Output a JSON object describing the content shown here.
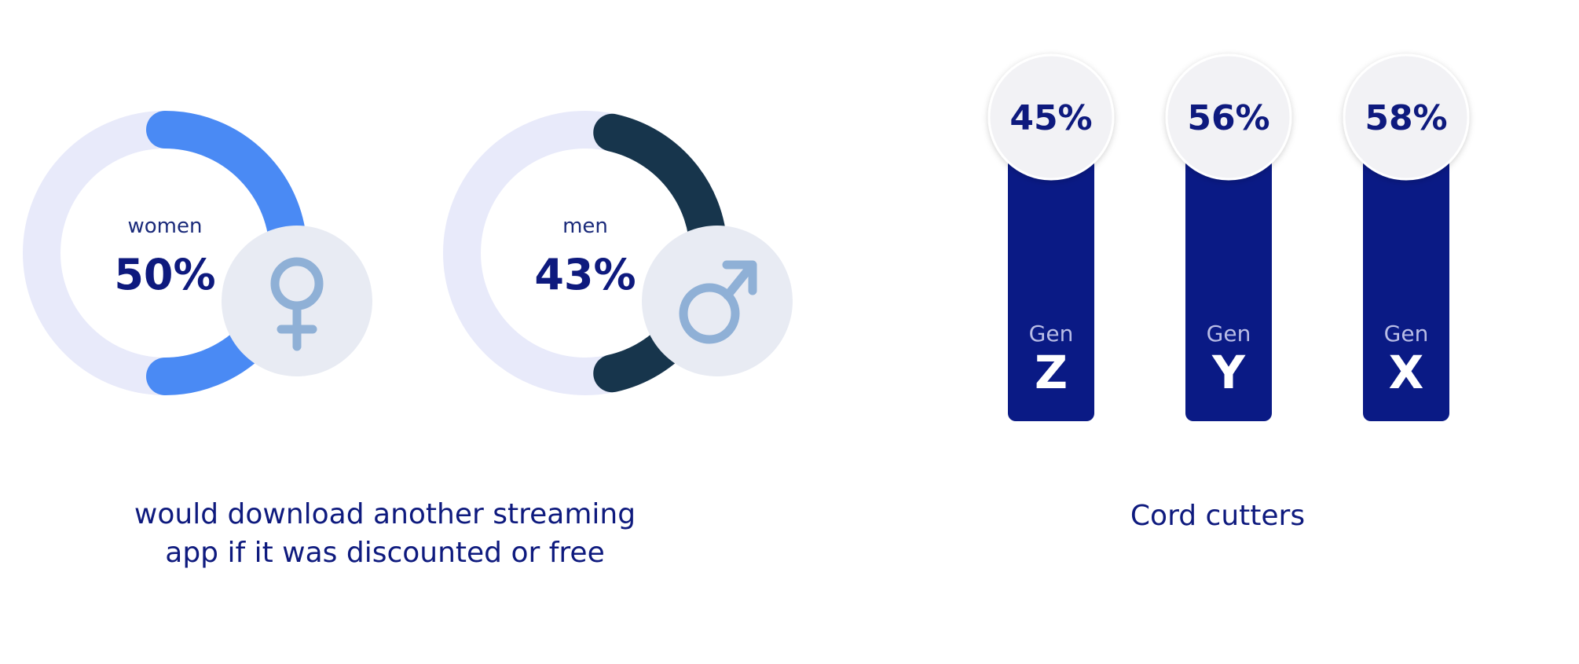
{
  "chart_data": [
    {
      "type": "pie",
      "subtype": "donut",
      "caption": "would download another streaming app if it was discounted or free",
      "items": [
        {
          "label": "women",
          "value": 50,
          "value_label": "50%",
          "color": "#4a8af4",
          "track_color": "#e8eafa",
          "icon": "female-symbol-icon",
          "icon_color": "#8fb0d6",
          "icon_bg": "#e8ebf3"
        },
        {
          "label": "men",
          "value": 43,
          "value_label": "43%",
          "color": "#17354c",
          "track_color": "#e8eafa",
          "icon": "male-symbol-icon",
          "icon_color": "#8fb0d6",
          "icon_bg": "#e8ebf3"
        }
      ]
    },
    {
      "type": "bar",
      "title": "Cord cutters",
      "categories": [
        "Gen Z",
        "Gen Y",
        "Gen X"
      ],
      "category_prefix": "Gen",
      "category_letters": [
        "Z",
        "Y",
        "X"
      ],
      "values": [
        45,
        56,
        58
      ],
      "value_labels": [
        "45%",
        "56%",
        "58%"
      ],
      "bar_color": "#0a1a85",
      "bubble_color": "#f2f2f5"
    }
  ]
}
